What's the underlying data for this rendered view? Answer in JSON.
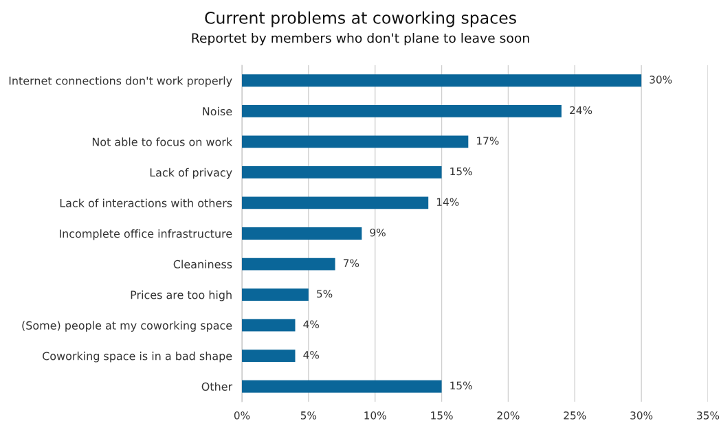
{
  "chart_data": {
    "type": "bar",
    "orientation": "horizontal",
    "title": "Current problems at coworking spaces",
    "subtitle": "Reportet by members who don't plane to leave soon",
    "categories": [
      "Internet connections don't work properly",
      "Noise",
      "Not able to focus on work",
      "Lack of privacy",
      "Lack of interactions with others",
      "Incomplete office infrastructure",
      "Cleaniness",
      "Prices are too high",
      "(Some) people at my coworking space",
      "Coworking space is in a bad shape",
      "Other"
    ],
    "values": [
      30,
      24,
      17,
      15,
      14,
      9,
      7,
      5,
      4,
      4,
      15
    ],
    "value_labels": [
      "30%",
      "24%",
      "17%",
      "15%",
      "14%",
      "9%",
      "7%",
      "5%",
      "4%",
      "4%",
      "15%"
    ],
    "color": "#0a6699",
    "xlim": [
      0,
      35
    ],
    "xticks": [
      {
        "value": 0,
        "label": "0%"
      },
      {
        "value": 5,
        "label": "5%"
      },
      {
        "value": 10,
        "label": "10%"
      },
      {
        "value": 15,
        "label": "15%"
      },
      {
        "value": 20,
        "label": "20%"
      },
      {
        "value": 25,
        "label": "25%"
      },
      {
        "value": 30,
        "label": "30%"
      },
      {
        "value": 35,
        "label": "35%"
      }
    ],
    "grid": "x"
  }
}
